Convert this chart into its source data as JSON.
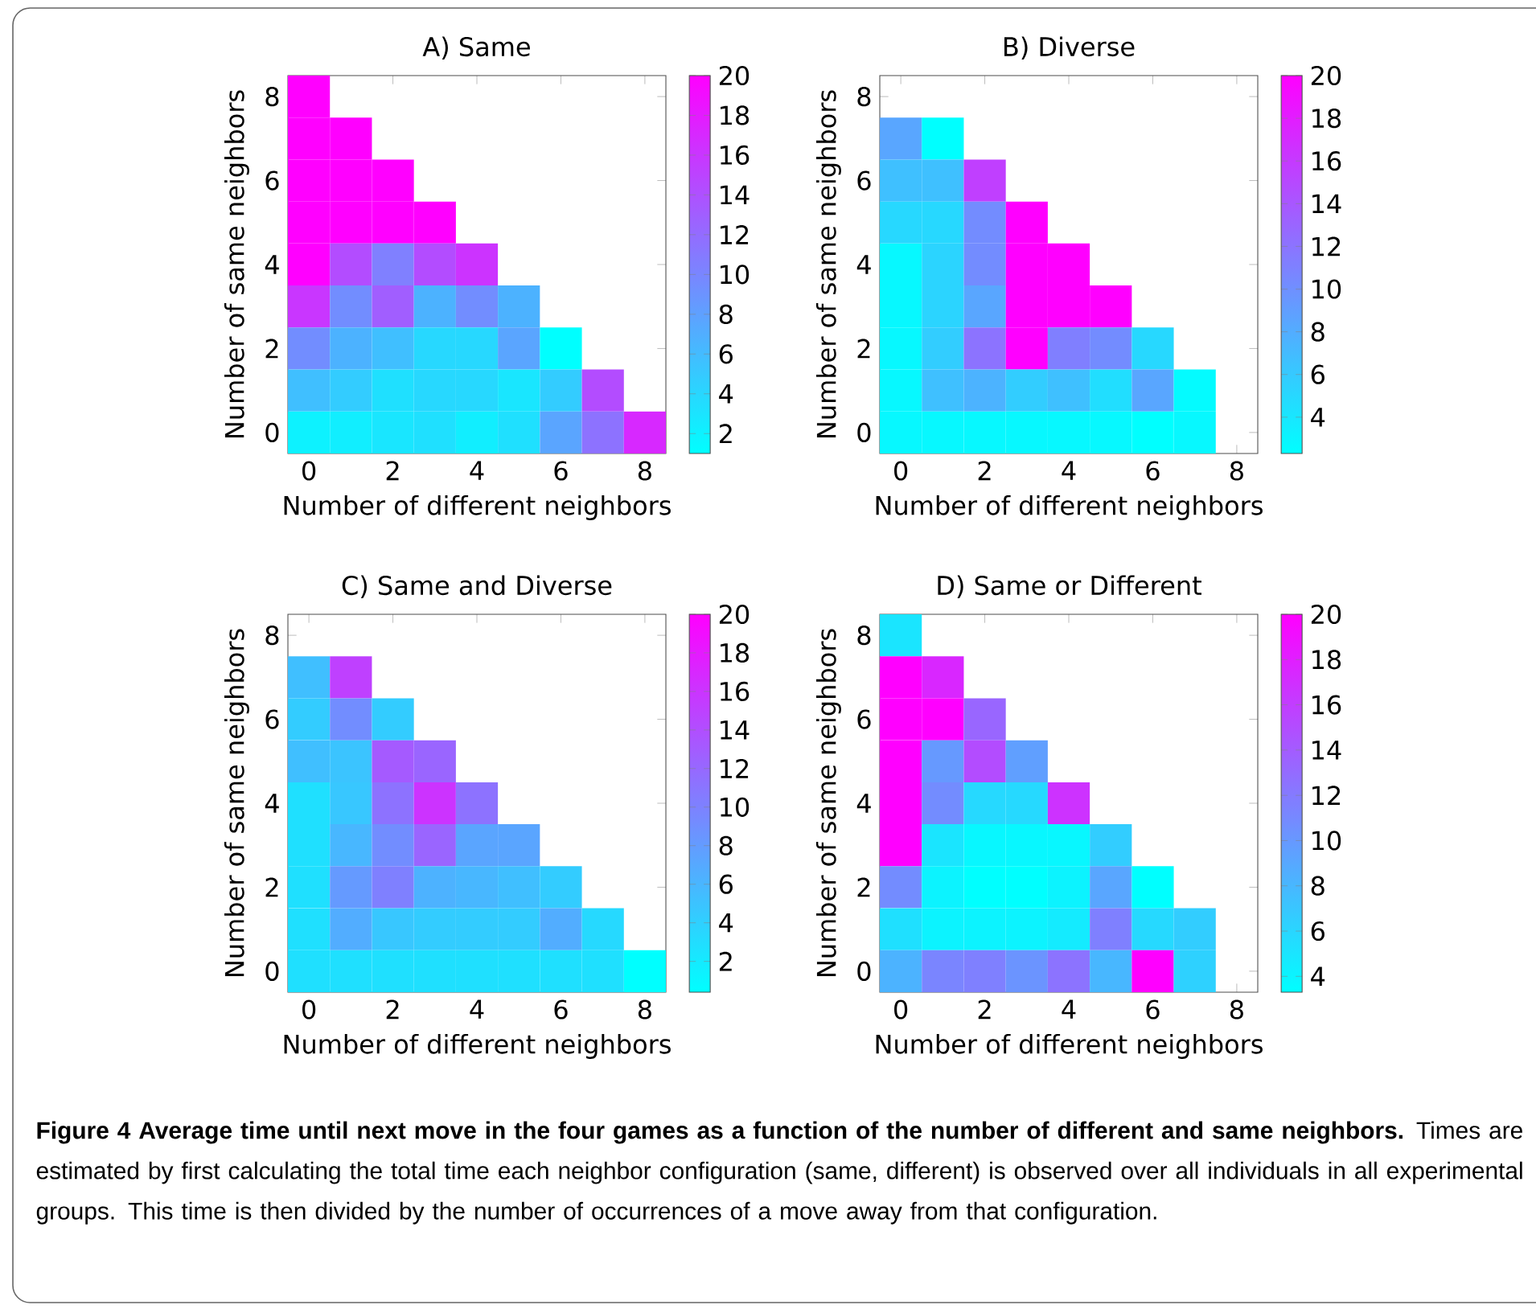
{
  "chart_data": [
    {
      "type": "heatmap",
      "title": "A) Same",
      "xlabel": "Number of different neighbors",
      "ylabel": "Number of same neighbors",
      "categories": [
        "0",
        null,
        "2",
        null,
        "4",
        null,
        "6",
        null,
        "8"
      ],
      "y_categories": [
        "8",
        null,
        "6",
        null,
        "4",
        null,
        "2",
        null,
        "0"
      ],
      "cells": [
        [
          20,
          null,
          null,
          null,
          null,
          null,
          null,
          null,
          null
        ],
        [
          20,
          20,
          null,
          null,
          null,
          null,
          null,
          null,
          null
        ],
        [
          20,
          20,
          20,
          null,
          null,
          null,
          null,
          null,
          null
        ],
        [
          20,
          20,
          20,
          20,
          null,
          null,
          null,
          null,
          null
        ],
        [
          20,
          14.3,
          10.5,
          14.3,
          16.2,
          null,
          null,
          null,
          null
        ],
        [
          16,
          9.5,
          13,
          6.7,
          9.5,
          6.7,
          null,
          null,
          null
        ],
        [
          9.5,
          6.7,
          5.8,
          3.9,
          3.9,
          7.7,
          1,
          null,
          null
        ],
        [
          5.8,
          4.8,
          3.3,
          3.9,
          3.9,
          2.9,
          4.8,
          14.3,
          null
        ],
        [
          2,
          2.3,
          2.9,
          3.3,
          2.3,
          3.3,
          7.7,
          11.5,
          17
        ]
      ],
      "clim": [
        1,
        20
      ],
      "cticks": [
        2,
        4,
        6,
        8,
        10,
        12,
        14,
        16,
        18,
        20
      ]
    },
    {
      "type": "heatmap",
      "title": "B) Diverse",
      "xlabel": "Number of different neighbors",
      "ylabel": "Number of same neighbors",
      "categories": [
        "0",
        null,
        "2",
        null,
        "4",
        null,
        "6",
        null,
        "8"
      ],
      "y_categories": [
        "8",
        null,
        "6",
        null,
        "4",
        null,
        "2",
        null,
        "0"
      ],
      "cells": [
        [
          null,
          null,
          null,
          null,
          null,
          null,
          null,
          null,
          null
        ],
        [
          8.5,
          2.3,
          null,
          null,
          null,
          null,
          null,
          null,
          null
        ],
        [
          6.7,
          6.7,
          15.6,
          null,
          null,
          null,
          null,
          null,
          null
        ],
        [
          5,
          5,
          10.3,
          20,
          null,
          null,
          null,
          null,
          null
        ],
        [
          2.8,
          5.3,
          10.3,
          20,
          20,
          null,
          null,
          null,
          null
        ],
        [
          2.8,
          5.3,
          8.5,
          20,
          20,
          20,
          null,
          null,
          null
        ],
        [
          2.8,
          5.8,
          12,
          20,
          11.2,
          10.3,
          5,
          null,
          null
        ],
        [
          2.8,
          6.7,
          7.6,
          5.8,
          6.7,
          4.6,
          8.5,
          2.6,
          null
        ],
        [
          2.8,
          2.8,
          2.8,
          2.8,
          2.8,
          2.8,
          2.3,
          2.8,
          null
        ]
      ],
      "clim": [
        2.3,
        20
      ],
      "cticks": [
        4,
        6,
        8,
        10,
        12,
        14,
        16,
        18,
        20
      ]
    },
    {
      "type": "heatmap",
      "title": "C) Same and Diverse",
      "xlabel": "Number of different neighbors",
      "ylabel": "Number of same neighbors",
      "categories": [
        "0",
        null,
        "2",
        null,
        "4",
        null,
        "6",
        null,
        "8"
      ],
      "y_categories": [
        "8",
        null,
        "6",
        null,
        "4",
        null,
        "2",
        null,
        "0"
      ],
      "cells": [
        [
          null,
          null,
          null,
          null,
          null,
          null,
          null,
          null,
          null
        ],
        [
          5.3,
          15.1,
          null,
          null,
          null,
          null,
          null,
          null,
          null
        ],
        [
          4.3,
          9.2,
          4.3,
          null,
          null,
          null,
          null,
          null,
          null
        ],
        [
          5.3,
          4.9,
          13.1,
          12.2,
          null,
          null,
          null,
          null,
          null
        ],
        [
          2.8,
          4.7,
          11.2,
          16.1,
          11.2,
          null,
          null,
          null,
          null
        ],
        [
          2.8,
          5.9,
          9.2,
          12.2,
          7.3,
          7.3,
          null,
          null,
          null
        ],
        [
          2.8,
          8.2,
          10.2,
          6.3,
          5.9,
          5.3,
          4.3,
          null,
          null
        ],
        [
          2.8,
          6.7,
          4.7,
          4.3,
          4.3,
          4.3,
          6.7,
          3.3,
          null
        ],
        [
          2.8,
          2.8,
          2.8,
          2.8,
          2.8,
          2.8,
          2.8,
          2.8,
          0.4
        ]
      ],
      "clim": [
        0.4,
        20
      ],
      "cticks": [
        2,
        4,
        6,
        8,
        10,
        12,
        14,
        16,
        18,
        20
      ]
    },
    {
      "type": "heatmap",
      "title": "D) Same or Different",
      "xlabel": "Number of different neighbors",
      "ylabel": "Number of same neighbors",
      "categories": [
        "0",
        null,
        "2",
        null,
        "4",
        null,
        "6",
        null,
        "8"
      ],
      "y_categories": [
        "8",
        null,
        "6",
        null,
        "4",
        null,
        "2",
        null,
        "0"
      ],
      "cells": [
        [
          5,
          null,
          null,
          null,
          null,
          null,
          null,
          null,
          null
        ],
        [
          20,
          17.5,
          null,
          null,
          null,
          null,
          null,
          null,
          null
        ],
        [
          20,
          20,
          13.3,
          null,
          null,
          null,
          null,
          null,
          null
        ],
        [
          20,
          10,
          15,
          9.6,
          null,
          null,
          null,
          null,
          null
        ],
        [
          20,
          10.8,
          5.8,
          5.8,
          16.7,
          null,
          null,
          null,
          null
        ],
        [
          20,
          5,
          3.8,
          3.8,
          3.8,
          6.6,
          null,
          null,
          null
        ],
        [
          10.8,
          4.1,
          3.3,
          3.3,
          4.1,
          9.1,
          3.3,
          null,
          null
        ],
        [
          5.3,
          4.1,
          4.1,
          4.1,
          4.6,
          11.6,
          5.8,
          6.6,
          null
        ],
        [
          8.3,
          11.3,
          11.6,
          10.3,
          12.5,
          8,
          20,
          6.3,
          null
        ]
      ],
      "clim": [
        3.3,
        20
      ],
      "cticks": [
        4,
        6,
        8,
        10,
        12,
        14,
        16,
        18,
        20
      ],
      "annotations": [
        "**Figure 4  Average time until next move in the four games as a function of the number of different and same neighbors.** Times are estimated by first calculating the total time each neighbor configuration (same, different) is observed over all individuals in all experimental groups. This time is then divided by the number of occurrences of a move away from that configuration."
      ]
    }
  ]
}
